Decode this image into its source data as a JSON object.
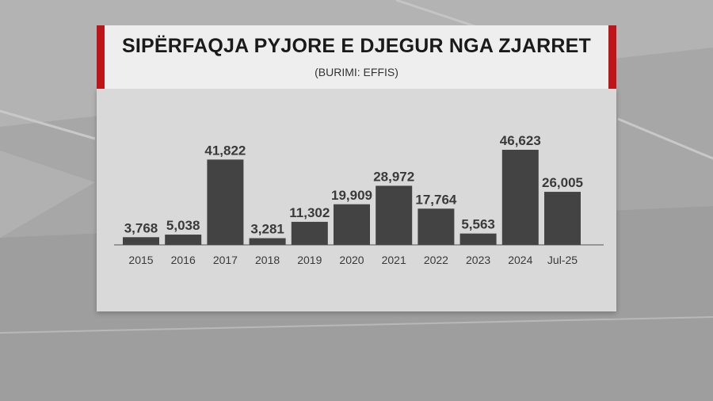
{
  "header": {
    "title": "SIPËRFAQJA PYJORE E DJEGUR NGA ZJARRET",
    "subtitle": "(BURIMI: EFFIS)"
  },
  "colors": {
    "bar": "#434343",
    "accent": "#c0141b",
    "label": "#3a3a3a",
    "axis": "#555555"
  },
  "chart_data": {
    "type": "bar",
    "title": "SIPËRFAQJA PYJORE E DJEGUR NGA ZJARRET",
    "subtitle": "(BURIMI: EFFIS)",
    "categories": [
      "2015",
      "2016",
      "2017",
      "2018",
      "2019",
      "2020",
      "2021",
      "2022",
      "2023",
      "2024",
      "Jul-25"
    ],
    "values": [
      3768,
      5038,
      41822,
      3281,
      11302,
      19909,
      28972,
      17764,
      5563,
      46623,
      26005
    ],
    "value_labels": [
      "3,768",
      "5,038",
      "41,822",
      "3,281",
      "11,302",
      "19,909",
      "28,972",
      "17,764",
      "5,563",
      "46,623",
      "26,005"
    ],
    "xlabel": "",
    "ylabel": "",
    "ylim": [
      0,
      46623
    ],
    "grid": false,
    "legend": "none"
  }
}
